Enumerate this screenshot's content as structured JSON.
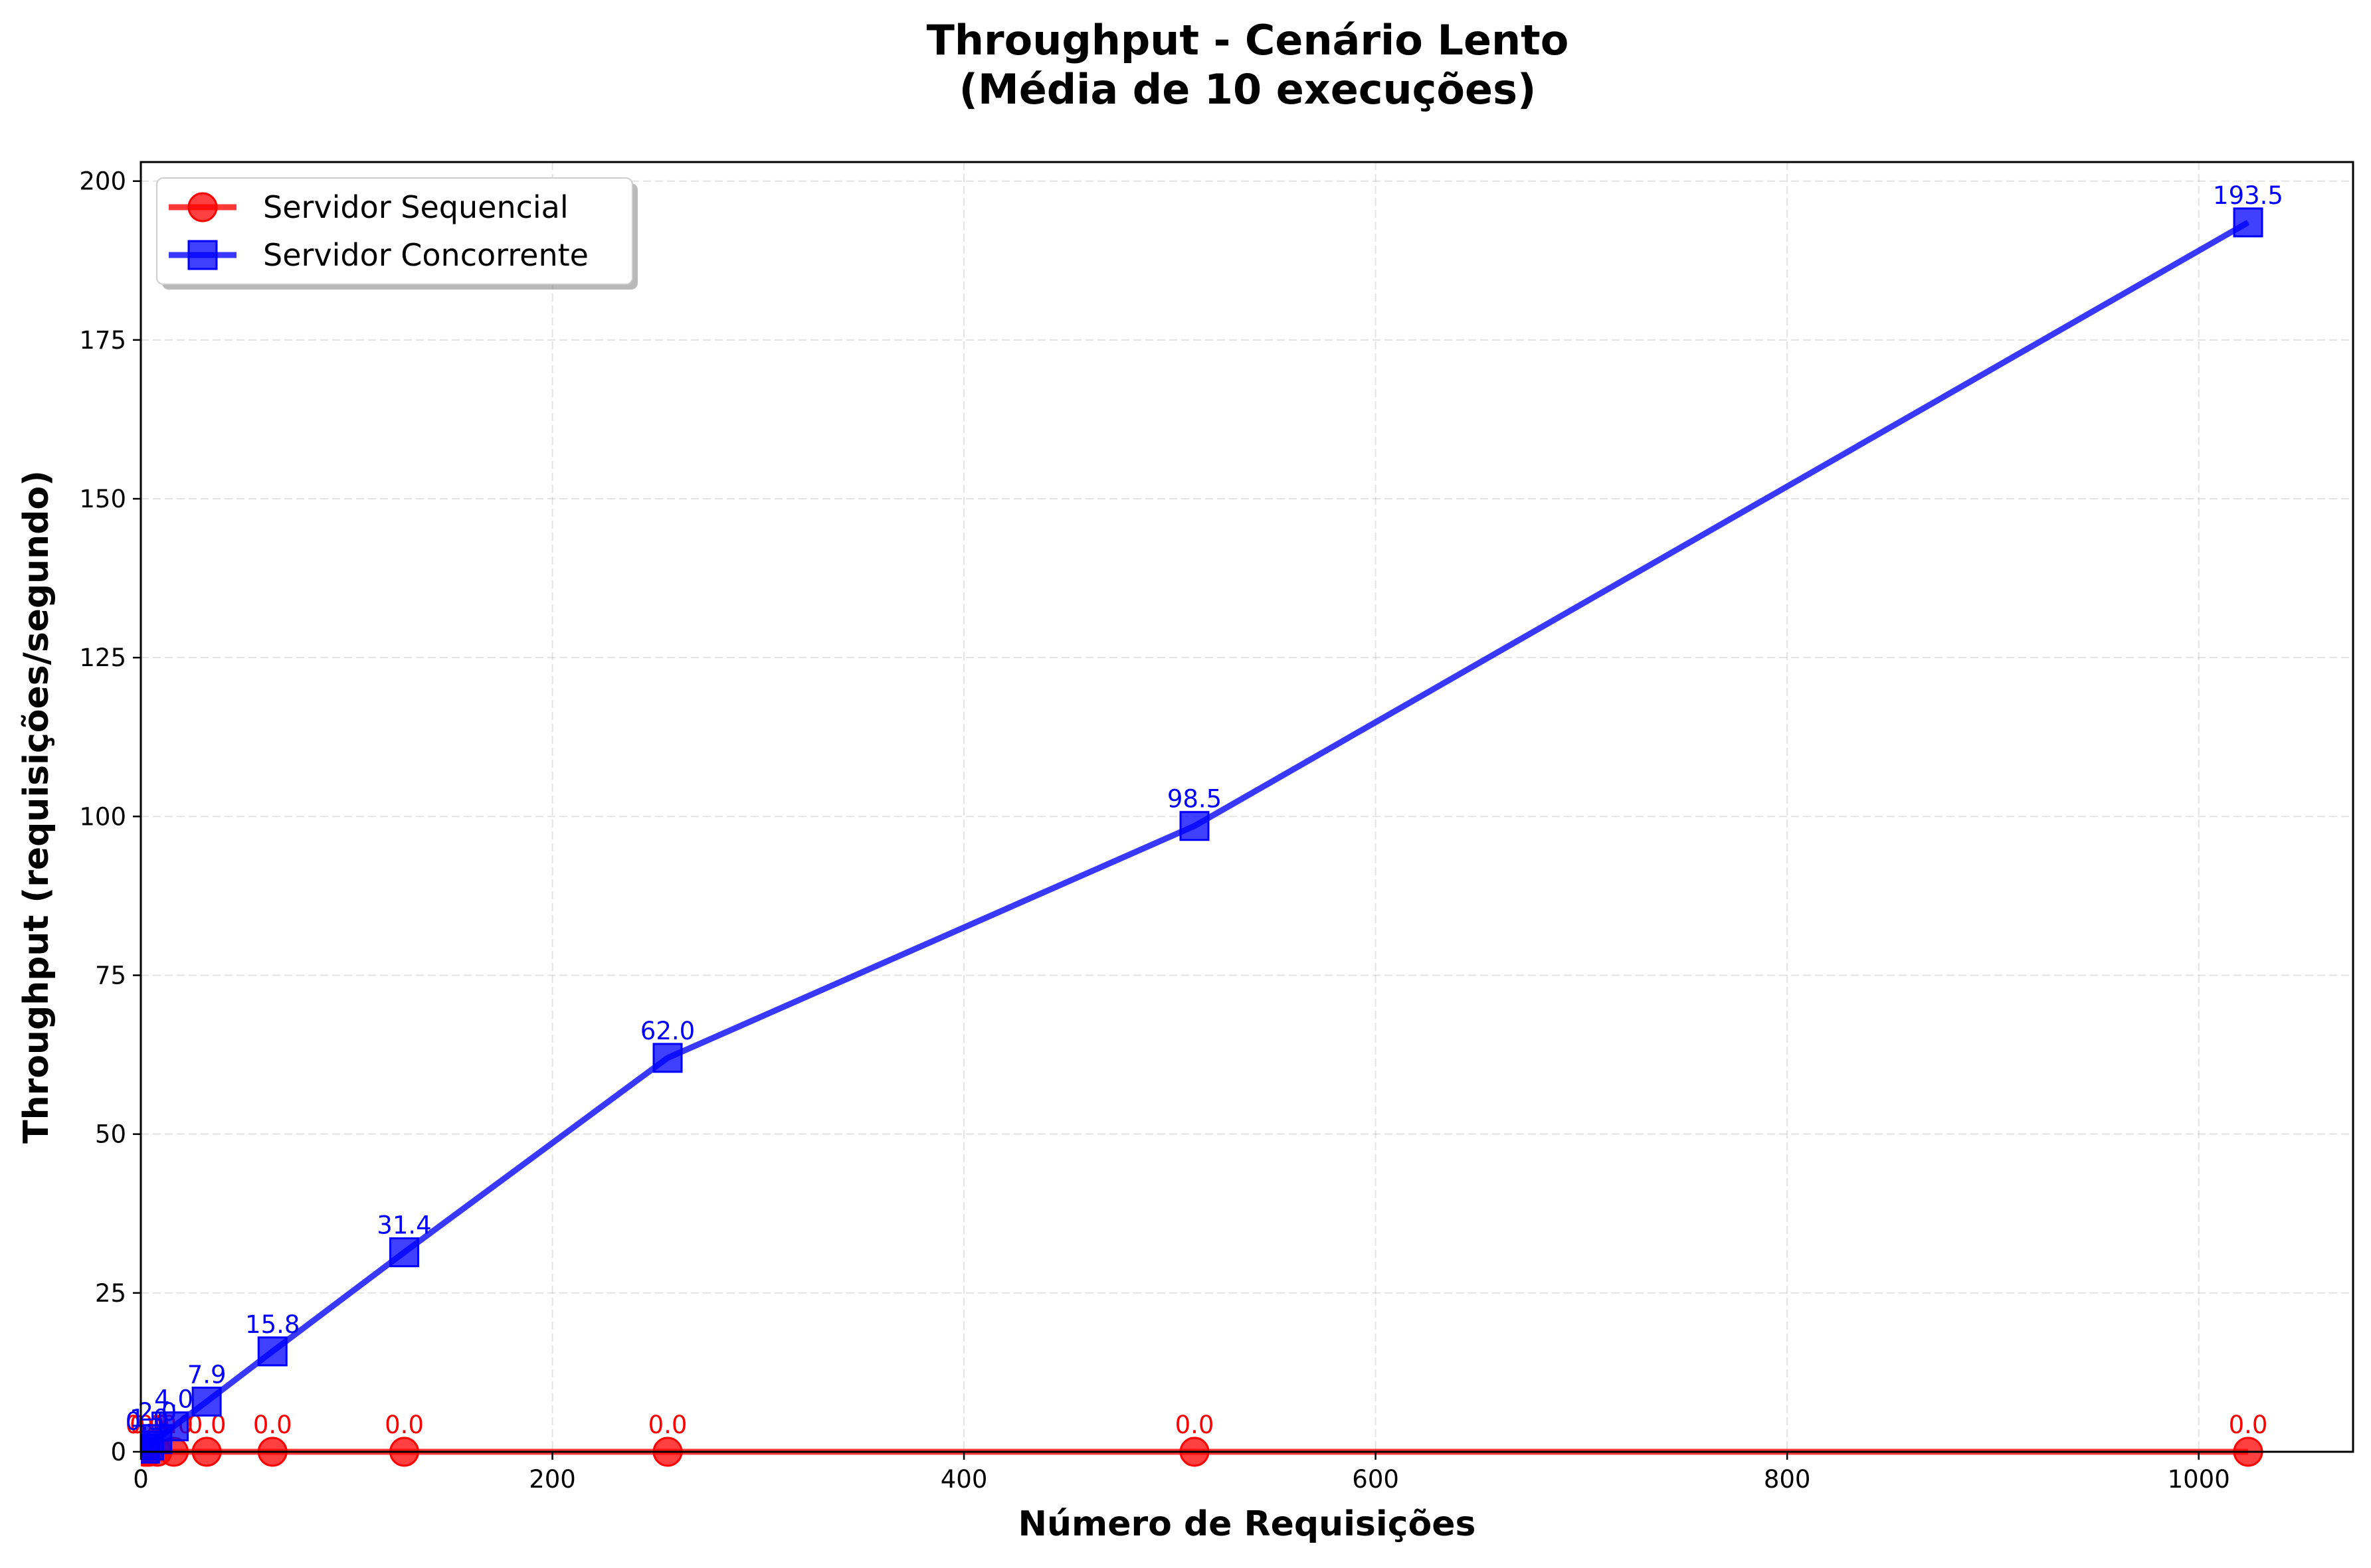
{
  "chart_data": {
    "type": "line",
    "title": "Throughput - Cenário Lento",
    "subtitle": "(Média de 10 execuções)",
    "xlabel": "Número de Requisições",
    "ylabel": "Throughput (requisições/segundo)",
    "xlim": [
      0,
      1075
    ],
    "ylim": [
      0,
      203
    ],
    "xticks": [
      0,
      200,
      400,
      600,
      800,
      1000
    ],
    "yticks": [
      0,
      25,
      50,
      75,
      100,
      125,
      150,
      175,
      200
    ],
    "grid": true,
    "legend_position": "top-left",
    "x": [
      2,
      4,
      8,
      16,
      32,
      64,
      128,
      256,
      512,
      1024
    ],
    "series": [
      {
        "name": "Servidor Sequencial",
        "color": "#ff0000",
        "marker": "circle",
        "values": [
          0.0,
          0.0,
          0.0,
          0.0,
          0.0,
          0.0,
          0.0,
          0.0,
          0.0,
          0.0
        ],
        "labels": [
          "0.0",
          "0.0",
          "0.0",
          "0.0",
          "0.0",
          "0.0",
          "0.0",
          "0.0",
          "0.0",
          "0.0"
        ]
      },
      {
        "name": "Servidor Concorrente",
        "color": "#0000ff",
        "marker": "square",
        "values": [
          0.5,
          1.0,
          2.0,
          4.0,
          7.9,
          15.8,
          31.4,
          62.0,
          98.5,
          193.5
        ],
        "labels": [
          "0.5",
          "1.0",
          "2.0",
          "4.0",
          "7.9",
          "15.8",
          "31.4",
          "62.0",
          "98.5",
          "193.5"
        ]
      }
    ]
  }
}
